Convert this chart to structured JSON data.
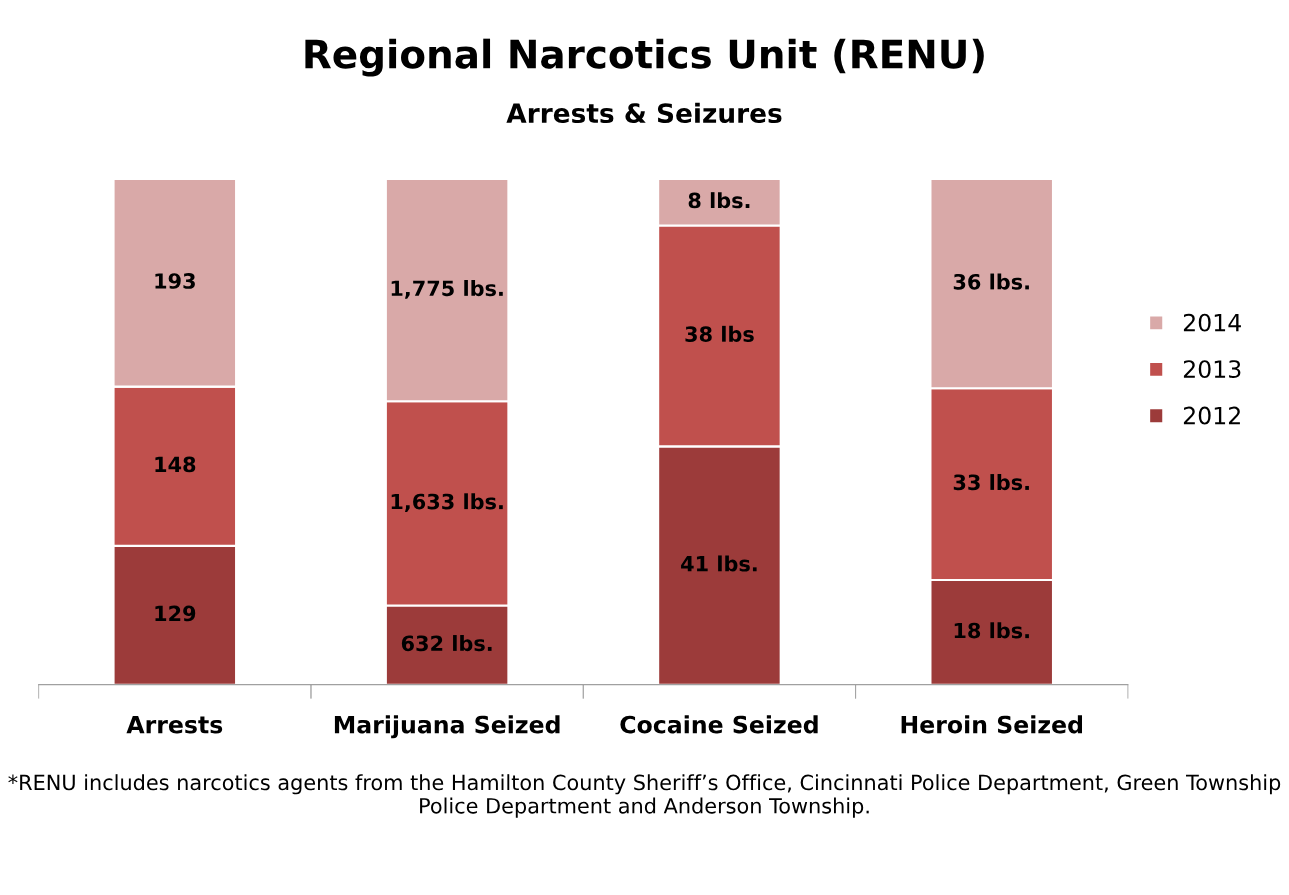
{
  "chart_data": [
    {
      "type": "other",
      "title": "Regional Narcotics Unit (RENU)",
      "subtitle": "Arrests & Seizures"
    },
    {
      "type": "bar",
      "categories": [
        "Arrests"
      ],
      "stacked": true,
      "ylim": [
        0,
        470
      ],
      "tick_labels": "x",
      "grid": false,
      "series": [
        {
          "color": "#9c3b3a",
          "values": [
            129
          ],
          "value_labels": [
            "129"
          ]
        },
        {
          "color": "#c0504d",
          "values": [
            148
          ],
          "value_labels": [
            "148"
          ]
        },
        {
          "color": "#d9a9a8",
          "values": [
            193
          ],
          "value_labels": [
            "193"
          ]
        }
      ]
    },
    {
      "type": "bar",
      "categories": [
        "Marijuana Seized"
      ],
      "stacked": true,
      "ylim": [
        0,
        4040
      ],
      "tick_labels": "x",
      "grid": false,
      "series": [
        {
          "color": "#9c3b3a",
          "values": [
            632
          ],
          "value_labels": [
            "632 lbs."
          ]
        },
        {
          "color": "#c0504d",
          "values": [
            1633
          ],
          "value_labels": [
            "1,633 lbs."
          ]
        },
        {
          "color": "#d9a9a8",
          "values": [
            1775
          ],
          "value_labels": [
            "1,775 lbs."
          ]
        }
      ]
    },
    {
      "type": "bar",
      "categories": [
        "Cocaine Seized"
      ],
      "stacked": true,
      "ylim": [
        0,
        87
      ],
      "tick_labels": "x",
      "grid": false,
      "series": [
        {
          "color": "#9c3b3a",
          "values": [
            41
          ],
          "value_labels": [
            "41 lbs."
          ]
        },
        {
          "color": "#c0504d",
          "values": [
            38
          ],
          "value_labels": [
            "38 lbs"
          ]
        },
        {
          "color": "#d9a9a8",
          "values": [
            8
          ],
          "value_labels": [
            "8 lbs."
          ]
        }
      ]
    },
    {
      "type": "bar",
      "categories": [
        "Heroin Seized"
      ],
      "stacked": true,
      "ylim": [
        0,
        87
      ],
      "tick_labels": "x",
      "grid": false,
      "legend": "right",
      "series": [
        {
          "name": "2012",
          "color": "#9c3b3a",
          "values": [
            18
          ],
          "value_labels": [
            "18 lbs."
          ]
        },
        {
          "name": "2013",
          "color": "#c0504d",
          "values": [
            33
          ],
          "value_labels": [
            "33 lbs."
          ]
        },
        {
          "name": "2014",
          "color": "#d9a9a8",
          "values": [
            36
          ],
          "value_labels": [
            "36 lbs."
          ]
        }
      ]
    },
    {
      "type": "other",
      "annotations": [
        "*RENU includes narcotics agents from the Hamilton County Sheriff’s Office, Cincinnati Police Department, Green Township Police Department and Anderson Township."
      ]
    }
  ]
}
